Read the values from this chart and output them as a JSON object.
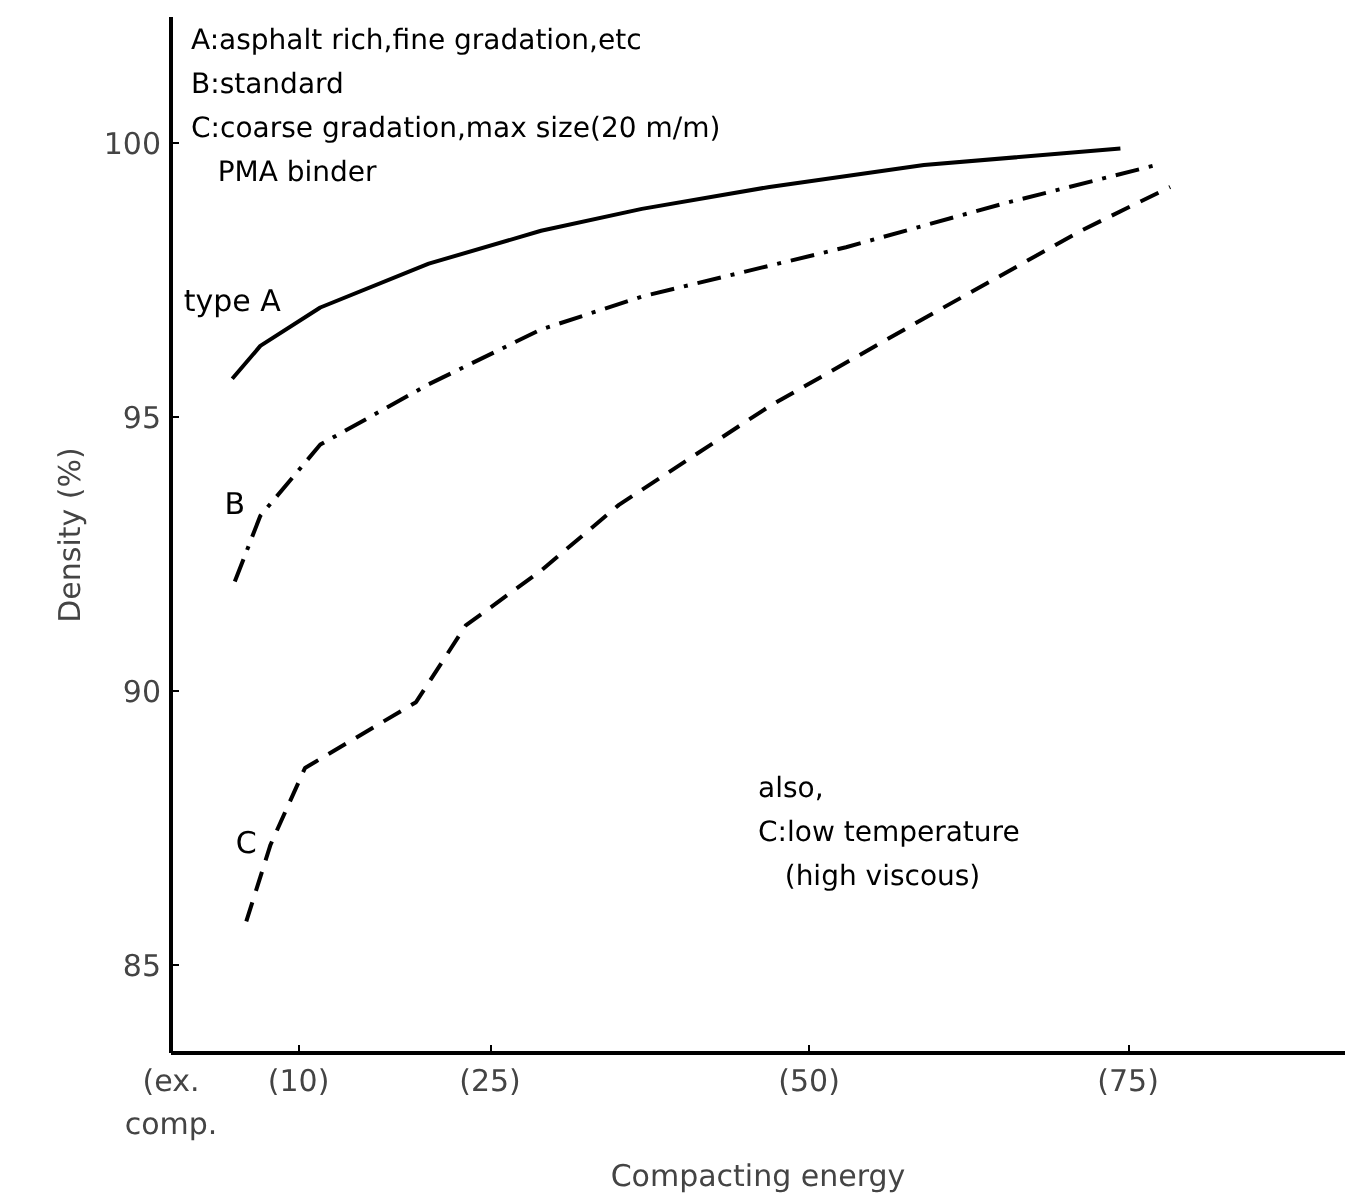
{
  "chart_data": {
    "type": "line",
    "xlabel": "Compacting energy",
    "ylabel": "Density (%)",
    "xlim": [
      0,
      92
    ],
    "ylim": [
      83.4,
      102.3
    ],
    "xticks": [
      {
        "value": 0,
        "label": "(ex.\ncomp."
      },
      {
        "value": 10,
        "label": "(10)"
      },
      {
        "value": 25,
        "label": "(25)"
      },
      {
        "value": 50,
        "label": "(50)"
      },
      {
        "value": 75,
        "label": "(75)"
      }
    ],
    "yticks": [
      85,
      90,
      95,
      100
    ],
    "grid": false,
    "marker": "none",
    "series": [
      {
        "name": "type A",
        "color": "#000000",
        "line_style": "solid",
        "x": [
          4.8,
          7.0,
          11.7,
          20.2,
          29.0,
          36.9,
          46.9,
          59.0,
          74.4
        ],
        "values": [
          95.7,
          96.3,
          97.0,
          97.8,
          98.4,
          98.8,
          99.2,
          99.6,
          99.9
        ]
      },
      {
        "name": "B",
        "color": "#000000",
        "line_style": "dashdot",
        "x": [
          5.0,
          7.0,
          11.7,
          20.2,
          29.0,
          36.9,
          52.9,
          65.3,
          77.2
        ],
        "values": [
          92.0,
          93.2,
          94.5,
          95.6,
          96.6,
          97.2,
          98.1,
          98.9,
          99.6
        ]
      },
      {
        "name": "C",
        "color": "#000000",
        "line_style": "dashed",
        "x": [
          5.9,
          7.8,
          10.5,
          19.2,
          23.1,
          29.0,
          35.1,
          46.9,
          59.0,
          71.3,
          78.3
        ],
        "values": [
          85.8,
          87.2,
          88.6,
          89.8,
          91.2,
          92.2,
          93.4,
          95.2,
          96.8,
          98.4,
          99.2
        ]
      }
    ],
    "annotations": [
      "A:asphalt rich,fine gradation,etc\nB:standard\nC:coarse gradation,max size(20 m/m)\n   PMA binder",
      "also,\nC:low temperature\n   (high viscous)"
    ]
  }
}
